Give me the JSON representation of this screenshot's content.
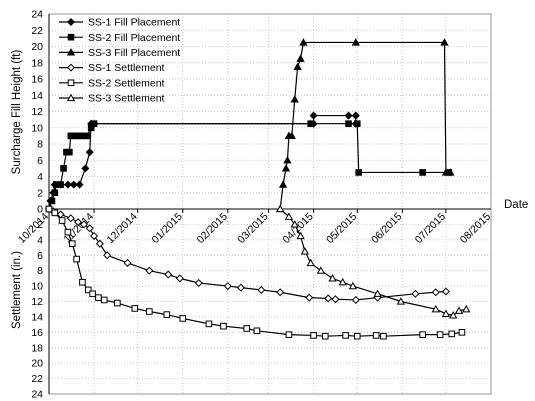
{
  "chart_data": {
    "type": "line",
    "xlabel": "Date",
    "ylabel_top": "Surcharge Fill Height (ft)",
    "ylabel_bottom": "Settlement (in.)",
    "x_ticks": [
      "10/2014",
      "11/2014",
      "12/2014",
      "01/2015",
      "02/2015",
      "03/2015",
      "04/2015",
      "05/2015",
      "06/2015",
      "07/2015",
      "08/2015"
    ],
    "y_ticks_top": [
      "0",
      "2",
      "4",
      "6",
      "8",
      "10",
      "12",
      "14",
      "16",
      "18",
      "20",
      "22",
      "24"
    ],
    "y_ticks_bottom": [
      "2",
      "4",
      "6",
      "8",
      "10",
      "12",
      "14",
      "16",
      "18",
      "20",
      "22",
      "24"
    ],
    "xlim": [
      "2014-10-01",
      "2015-08-01"
    ],
    "ylim_top": [
      0,
      24
    ],
    "ylim_bottom": [
      0,
      24
    ],
    "grid": true,
    "legend_position": "top-left",
    "series": [
      {
        "name": "SS-1 Fill Placement",
        "axis": "top",
        "marker": "diamond-filled",
        "points": [
          [
            "2014-10-01",
            0
          ],
          [
            "2014-10-02",
            1
          ],
          [
            "2014-10-04",
            2
          ],
          [
            "2014-10-05",
            3
          ],
          [
            "2014-10-09",
            3
          ],
          [
            "2014-10-14",
            3
          ],
          [
            "2014-10-18",
            3
          ],
          [
            "2014-10-22",
            3
          ],
          [
            "2014-10-26",
            5
          ],
          [
            "2014-10-29",
            7
          ],
          [
            "2014-10-30",
            10.5
          ],
          [
            "2015-04-01",
            10.5
          ],
          [
            "2015-04-01",
            11.5
          ],
          [
            "2015-04-25",
            11.5
          ],
          [
            "2015-04-30",
            11.5
          ],
          [
            "2015-04-30",
            10.5
          ]
        ]
      },
      {
        "name": "SS-2 Fill Placement",
        "axis": "top",
        "marker": "square-filled",
        "points": [
          [
            "2014-10-01",
            0
          ],
          [
            "2014-10-03",
            1
          ],
          [
            "2014-10-05",
            2
          ],
          [
            "2014-10-06",
            3
          ],
          [
            "2014-10-09",
            3
          ],
          [
            "2014-10-11",
            5
          ],
          [
            "2014-10-13",
            7
          ],
          [
            "2014-10-15",
            7
          ],
          [
            "2014-10-16",
            9
          ],
          [
            "2014-10-18",
            9
          ],
          [
            "2014-10-21",
            9
          ],
          [
            "2014-10-24",
            9
          ],
          [
            "2014-10-27",
            9
          ],
          [
            "2014-10-30",
            10
          ],
          [
            "2014-11-01",
            10.5
          ],
          [
            "2015-03-30",
            10.5
          ],
          [
            "2015-04-25",
            10.5
          ],
          [
            "2015-05-01",
            10.5
          ],
          [
            "2015-05-02",
            4.5
          ],
          [
            "2015-06-15",
            4.5
          ],
          [
            "2015-07-03",
            4.5
          ]
        ]
      },
      {
        "name": "SS-3 Fill Placement",
        "axis": "top",
        "marker": "triangle-filled",
        "points": [
          [
            "2015-03-09",
            0
          ],
          [
            "2015-03-11",
            3
          ],
          [
            "2015-03-13",
            5
          ],
          [
            "2015-03-14",
            6
          ],
          [
            "2015-03-15",
            9
          ],
          [
            "2015-03-17",
            9
          ],
          [
            "2015-03-19",
            13.5
          ],
          [
            "2015-03-21",
            17.5
          ],
          [
            "2015-03-23",
            18.5
          ],
          [
            "2015-03-25",
            20.5
          ],
          [
            "2015-04-30",
            20.5
          ],
          [
            "2015-06-30",
            20.5
          ],
          [
            "2015-07-01",
            4.5
          ],
          [
            "2015-07-04",
            4.5
          ]
        ]
      },
      {
        "name": "SS-1 Settlement",
        "axis": "bottom",
        "marker": "diamond-open",
        "points": [
          [
            "2014-10-01",
            0
          ],
          [
            "2014-10-04",
            0.3
          ],
          [
            "2014-10-09",
            0.7
          ],
          [
            "2014-10-16",
            1.2
          ],
          [
            "2014-10-21",
            1.7
          ],
          [
            "2014-10-25",
            2.0
          ],
          [
            "2014-10-29",
            2.5
          ],
          [
            "2014-11-01",
            3.5
          ],
          [
            "2014-11-05",
            4.5
          ],
          [
            "2014-11-10",
            6
          ],
          [
            "2014-11-24",
            7
          ],
          [
            "2014-12-09",
            8
          ],
          [
            "2014-12-22",
            8.5
          ],
          [
            "2014-12-30",
            9
          ],
          [
            "2015-01-12",
            9.6
          ],
          [
            "2015-02-01",
            10
          ],
          [
            "2015-02-10",
            10.2
          ],
          [
            "2015-02-24",
            10.5
          ],
          [
            "2015-03-09",
            10.8
          ],
          [
            "2015-03-29",
            11.5
          ],
          [
            "2015-04-11",
            11.6
          ],
          [
            "2015-04-16",
            11.7
          ],
          [
            "2015-04-30",
            11.8
          ],
          [
            "2015-05-15",
            11.5
          ],
          [
            "2015-06-10",
            11.0
          ],
          [
            "2015-06-24",
            10.8
          ],
          [
            "2015-07-01",
            10.7
          ]
        ]
      },
      {
        "name": "SS-2 Settlement",
        "axis": "bottom",
        "marker": "square-open",
        "points": [
          [
            "2014-10-01",
            0
          ],
          [
            "2014-10-05",
            0.5
          ],
          [
            "2014-10-10",
            1.5
          ],
          [
            "2014-10-14",
            3
          ],
          [
            "2014-10-17",
            4.5
          ],
          [
            "2014-10-20",
            6.5
          ],
          [
            "2014-10-24",
            9.5
          ],
          [
            "2014-10-28",
            10.5
          ],
          [
            "2014-10-31",
            11
          ],
          [
            "2014-11-04",
            11.5
          ],
          [
            "2014-11-08",
            11.8
          ],
          [
            "2014-11-17",
            12.2
          ],
          [
            "2014-11-29",
            12.9
          ],
          [
            "2014-12-09",
            13.3
          ],
          [
            "2014-12-21",
            13.7
          ],
          [
            "2015-01-01",
            14.2
          ],
          [
            "2015-01-19",
            14.9
          ],
          [
            "2015-01-29",
            15.2
          ],
          [
            "2015-02-14",
            15.5
          ],
          [
            "2015-02-21",
            15.8
          ],
          [
            "2015-03-15",
            16.3
          ],
          [
            "2015-04-01",
            16.4
          ],
          [
            "2015-04-09",
            16.5
          ],
          [
            "2015-04-23",
            16.4
          ],
          [
            "2015-05-01",
            16.5
          ],
          [
            "2015-05-14",
            16.4
          ],
          [
            "2015-05-19",
            16.5
          ],
          [
            "2015-06-15",
            16.3
          ],
          [
            "2015-06-27",
            16.3
          ],
          [
            "2015-07-05",
            16.2
          ],
          [
            "2015-07-12",
            16.0
          ]
        ]
      },
      {
        "name": "SS-3 Settlement",
        "axis": "bottom",
        "marker": "triangle-open",
        "points": [
          [
            "2015-03-09",
            0
          ],
          [
            "2015-03-15",
            1
          ],
          [
            "2015-03-19",
            2
          ],
          [
            "2015-03-23",
            3.5
          ],
          [
            "2015-03-26",
            5.5
          ],
          [
            "2015-03-30",
            7
          ],
          [
            "2015-04-06",
            8
          ],
          [
            "2015-04-14",
            9
          ],
          [
            "2015-04-21",
            9.5
          ],
          [
            "2015-04-28",
            10
          ],
          [
            "2015-05-15",
            11
          ],
          [
            "2015-05-31",
            12
          ],
          [
            "2015-06-24",
            13
          ],
          [
            "2015-07-01",
            13.6
          ],
          [
            "2015-07-06",
            13.8
          ],
          [
            "2015-07-10",
            13.2
          ],
          [
            "2015-07-15",
            13.0
          ]
        ]
      }
    ]
  }
}
